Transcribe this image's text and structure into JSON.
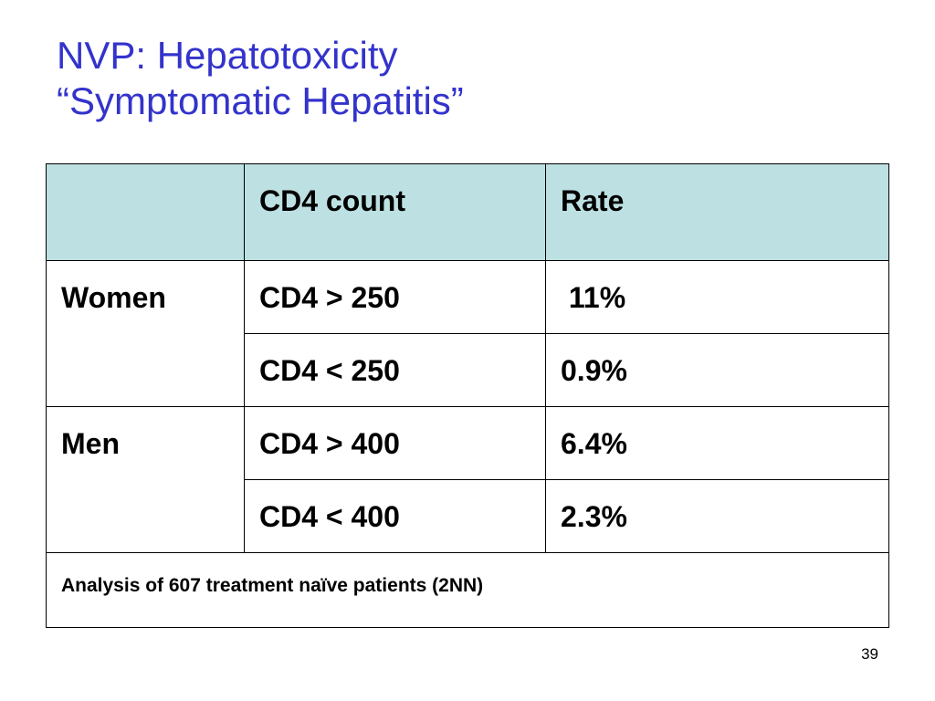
{
  "slide": {
    "title_line1": "NVP: Hepatotoxicity",
    "title_line2": "“Symptomatic Hepatitis”",
    "title_color": "#3333cc",
    "page_number": "39"
  },
  "table": {
    "header_bg": "#bde0e3",
    "headers": [
      "",
      "CD4 count",
      "Rate"
    ],
    "groups": [
      {
        "label": "Women",
        "rows": [
          {
            "cd4": "CD4 > 250",
            "rate": " 11%"
          },
          {
            "cd4": "CD4 < 250",
            "rate": "0.9%"
          }
        ]
      },
      {
        "label": "Men",
        "rows": [
          {
            "cd4": "CD4 > 400",
            "rate": "6.4%"
          },
          {
            "cd4": "CD4 < 400",
            "rate": "2.3%"
          }
        ]
      }
    ],
    "footnote": "Analysis of 607 treatment naïve patients (2NN)"
  }
}
